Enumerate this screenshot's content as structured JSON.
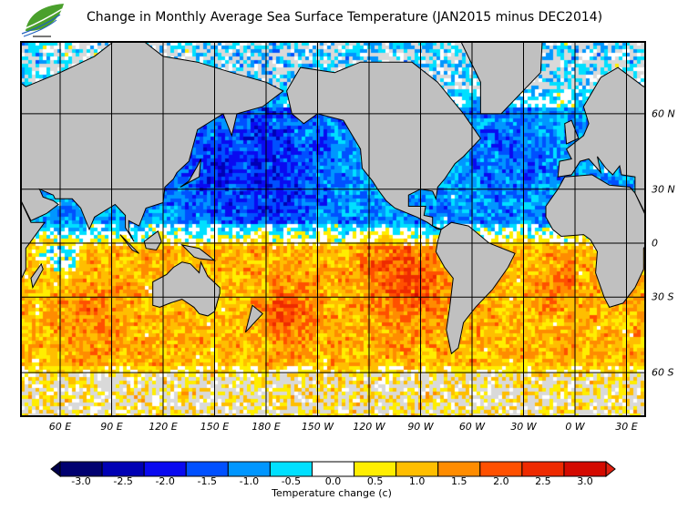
{
  "title": "Change in Monthly Average Sea Surface Temperature (JAN2015 minus DEC2014)",
  "map": {
    "longitude_labels": [
      "60 E",
      "90 E",
      "120 E",
      "150 E",
      "180 E",
      "150 W",
      "120 W",
      "90 W",
      "60 W",
      "30 W",
      "0 W",
      "30 E"
    ],
    "latitude_labels": [
      "60 N",
      "30 N",
      "0",
      "30 S",
      "60 S"
    ],
    "land_color": "#c0c0c0",
    "sea_ice_color": "#d9d9d9"
  },
  "colorbar": {
    "label": "Temperature change  (c)",
    "ticks": [
      "-3.0",
      "-2.5",
      "-2.0",
      "-1.5",
      "-1.0",
      "-0.5",
      "0.0",
      "0.5",
      "1.0",
      "1.5",
      "2.0",
      "2.5",
      "3.0"
    ],
    "colors": [
      "#000070",
      "#0000b4",
      "#0a0af0",
      "#0050ff",
      "#0096ff",
      "#00e0ff",
      "#ffffff",
      "#ffee00",
      "#ffbe00",
      "#ff8c00",
      "#ff5000",
      "#ee2a00",
      "#d40a00"
    ],
    "under_color": "#00004a",
    "over_color": "#e02010"
  }
}
